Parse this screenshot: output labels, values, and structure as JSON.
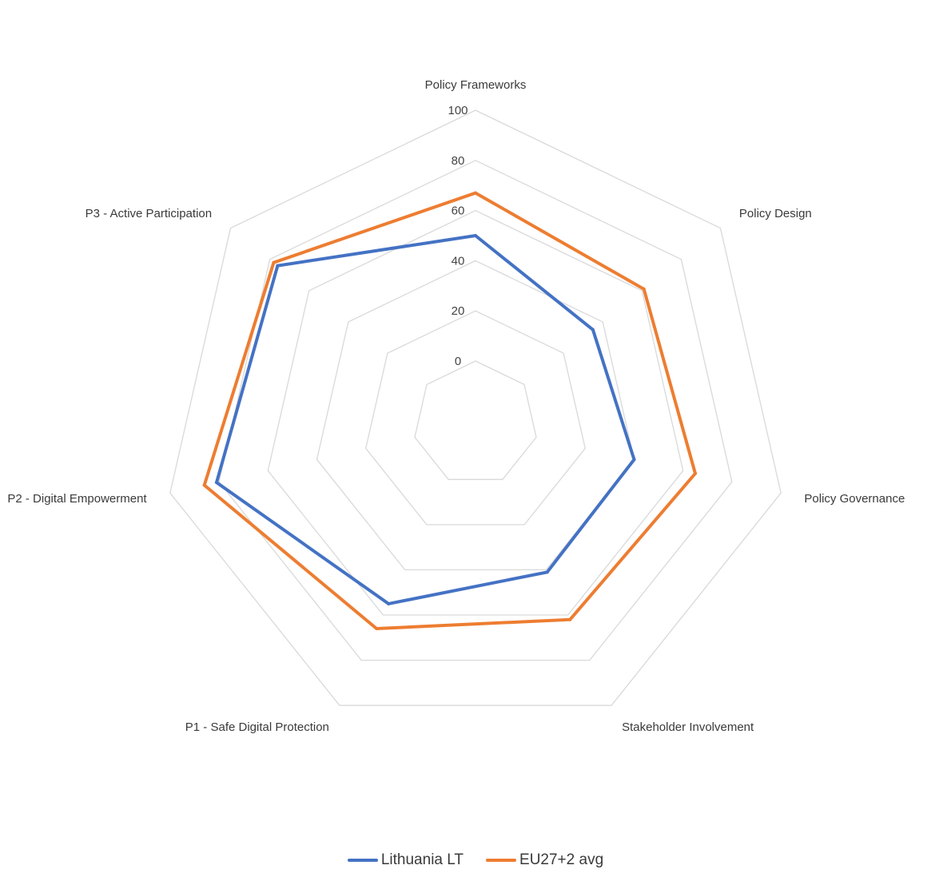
{
  "chart_data": {
    "type": "radar",
    "categories": [
      "Policy Frameworks",
      "Policy Design",
      "Policy Governance",
      "Stakeholder Involvement",
      "P1 - Safe Digital Protection",
      "P2 - Digital Empowerment",
      "P3 - Active Participation"
    ],
    "series": [
      {
        "name": "Lithuania LT",
        "color": "#4472c4",
        "values": [
          50,
          35,
          40,
          41,
          55,
          81,
          76
        ]
      },
      {
        "name": "EU27+2 avg",
        "color": "#ed7d31",
        "values": [
          67,
          61,
          65,
          62,
          66,
          86,
          78
        ]
      }
    ],
    "r_ticks": [
      "0",
      "20",
      "40",
      "60",
      "80",
      "100"
    ],
    "r_range": [
      0,
      100
    ],
    "grid": true,
    "legend_position": "bottom"
  }
}
